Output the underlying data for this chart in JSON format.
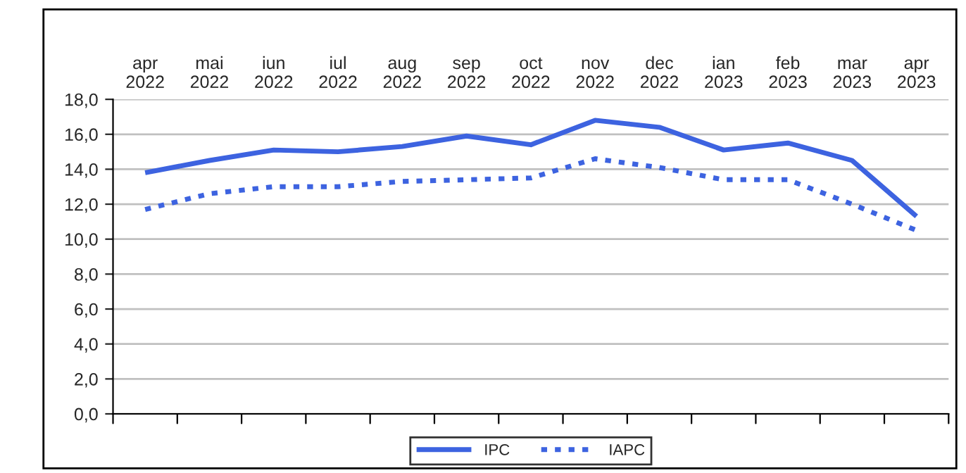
{
  "chart_data": {
    "type": "line",
    "categories": [
      "apr\n2022",
      "mai\n2022",
      "iun\n2022",
      "iul\n2022",
      "aug\n2022",
      "sep\n2022",
      "oct\n2022",
      "nov\n2022",
      "dec\n2022",
      "ian\n2023",
      "feb\n2023",
      "mar\n2023",
      "apr\n2023"
    ],
    "series": [
      {
        "name": "IPC",
        "color": "#3d63e0",
        "line_style": "solid",
        "values": [
          13.8,
          14.5,
          15.1,
          15.0,
          15.3,
          15.9,
          15.4,
          16.8,
          16.4,
          15.1,
          15.5,
          14.5,
          11.3
        ]
      },
      {
        "name": "IAPC",
        "color": "#3d63e0",
        "line_style": "dotted",
        "values": [
          11.7,
          12.6,
          13.0,
          13.0,
          13.3,
          13.4,
          13.5,
          14.6,
          14.1,
          13.4,
          13.4,
          12.0,
          10.5
        ]
      }
    ],
    "ylim": [
      0,
      18
    ],
    "yticks": [
      {
        "value": 0,
        "label": "0,0"
      },
      {
        "value": 2,
        "label": "2,0"
      },
      {
        "value": 4,
        "label": "4,0"
      },
      {
        "value": 6,
        "label": "6,0"
      },
      {
        "value": 8,
        "label": "8,0"
      },
      {
        "value": 10,
        "label": "10,0"
      },
      {
        "value": 12,
        "label": "12,0"
      },
      {
        "value": 14,
        "label": "14,0"
      },
      {
        "value": 16,
        "label": "16,0"
      },
      {
        "value": 18,
        "label": "18,0"
      }
    ],
    "grid": "y",
    "legend": "bottom"
  }
}
